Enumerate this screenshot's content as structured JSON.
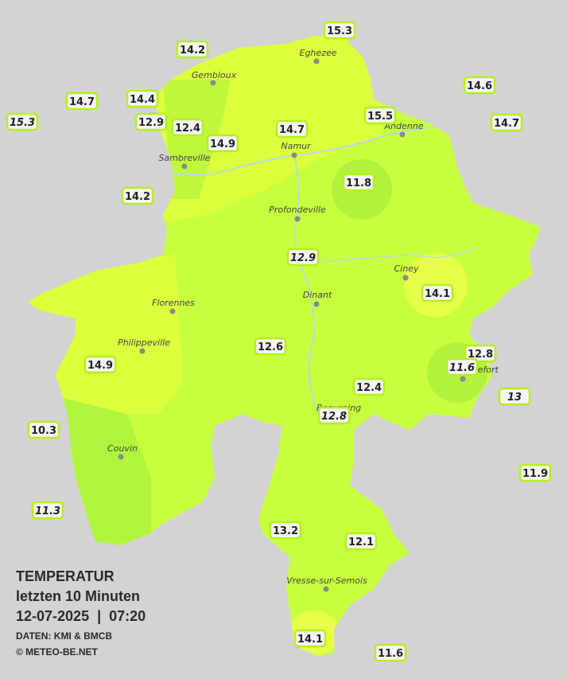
{
  "header": {
    "title": "TEMPERATUR",
    "subtitle": "letzten 10 Minuten",
    "datetime": "12-07-2025  |  07:20",
    "source": "DATEN: KMI & BMCB",
    "credit": "© METEO-BE.NET"
  },
  "cities": [
    "Eghezee",
    "Gembloux",
    "Andenne",
    "Namur",
    "Sambreville",
    "Profondeville",
    "Ciney",
    "Dinant",
    "Florennes",
    "Philippeville",
    "Beauraing",
    "Rochefort",
    "Couvin",
    "Vresse-sur-Semois"
  ],
  "stations": [
    {
      "value": 14.2,
      "italic": false
    },
    {
      "value": 15.3,
      "italic": false
    },
    {
      "value": 14.6,
      "italic": false
    },
    {
      "value": 14.7,
      "italic": false
    },
    {
      "value": 14.4,
      "italic": false
    },
    {
      "value": 15.3,
      "italic": true
    },
    {
      "value": 12.9,
      "italic": false
    },
    {
      "value": 12.4,
      "italic": false
    },
    {
      "value": 14.9,
      "italic": false
    },
    {
      "value": 14.7,
      "italic": false
    },
    {
      "value": 15.5,
      "italic": false
    },
    {
      "value": 14.7,
      "italic": false
    },
    {
      "value": 11.8,
      "italic": false
    },
    {
      "value": 14.2,
      "italic": false
    },
    {
      "value": 12.9,
      "italic": true
    },
    {
      "value": 14.1,
      "italic": false
    },
    {
      "value": 12.6,
      "italic": false
    },
    {
      "value": 12.8,
      "italic": false
    },
    {
      "value": 11.6,
      "italic": true
    },
    {
      "value": 14.9,
      "italic": false
    },
    {
      "value": 12.4,
      "italic": false
    },
    {
      "value": 13.0,
      "italic": true
    },
    {
      "value": 12.8,
      "italic": true
    },
    {
      "value": 10.3,
      "italic": false
    },
    {
      "value": 11.9,
      "italic": false
    },
    {
      "value": 11.3,
      "italic": true
    },
    {
      "value": 13.2,
      "italic": false
    },
    {
      "value": 12.1,
      "italic": false
    },
    {
      "value": 14.1,
      "italic": false
    },
    {
      "value": 11.6,
      "italic": false
    }
  ]
}
